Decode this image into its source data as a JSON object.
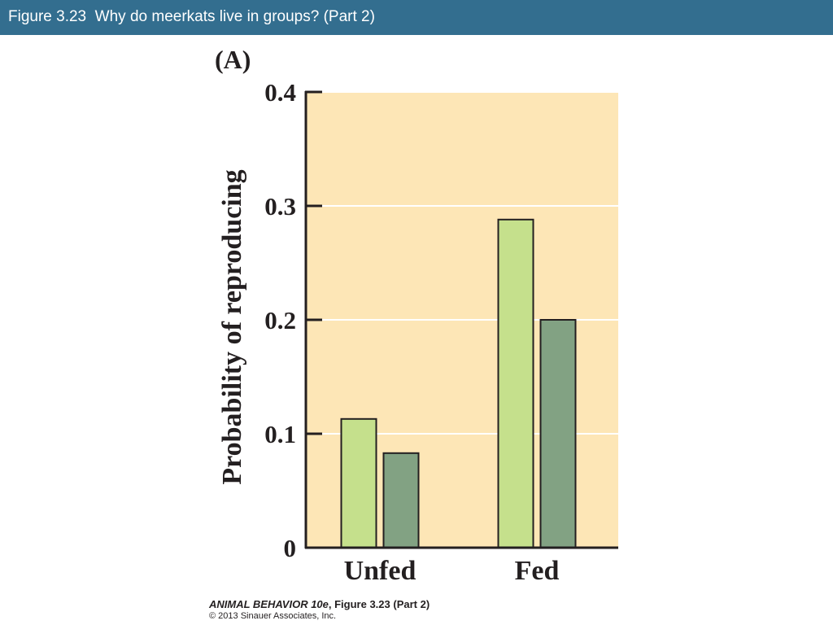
{
  "slide": {
    "title": "Figure 3.23  Why do meerkats live in groups? (Part 2)",
    "title_bar_color": "#336e8f"
  },
  "credit": {
    "book": "ANIMAL BEHAVIOR 10e",
    "figure": ", Figure 3.23 (Part 2)",
    "copyright": "© 2013 Sinauer Associates, Inc."
  },
  "chart_data": {
    "type": "bar",
    "panel_label": "(A)",
    "categories": [
      "Unfed",
      "Fed"
    ],
    "series": [
      {
        "values": [
          0.113,
          0.288
        ],
        "color": "#c5e08c"
      },
      {
        "values": [
          0.083,
          0.2
        ],
        "color": "#82a283"
      }
    ],
    "xlabel": "",
    "ylabel": "Probability of reproducing",
    "ylim": [
      0,
      0.4
    ],
    "yticks": [
      "0",
      "0.1",
      "0.2",
      "0.3",
      "0.4"
    ],
    "background_color": "#fde6b6",
    "grid": true,
    "legend": "none"
  }
}
